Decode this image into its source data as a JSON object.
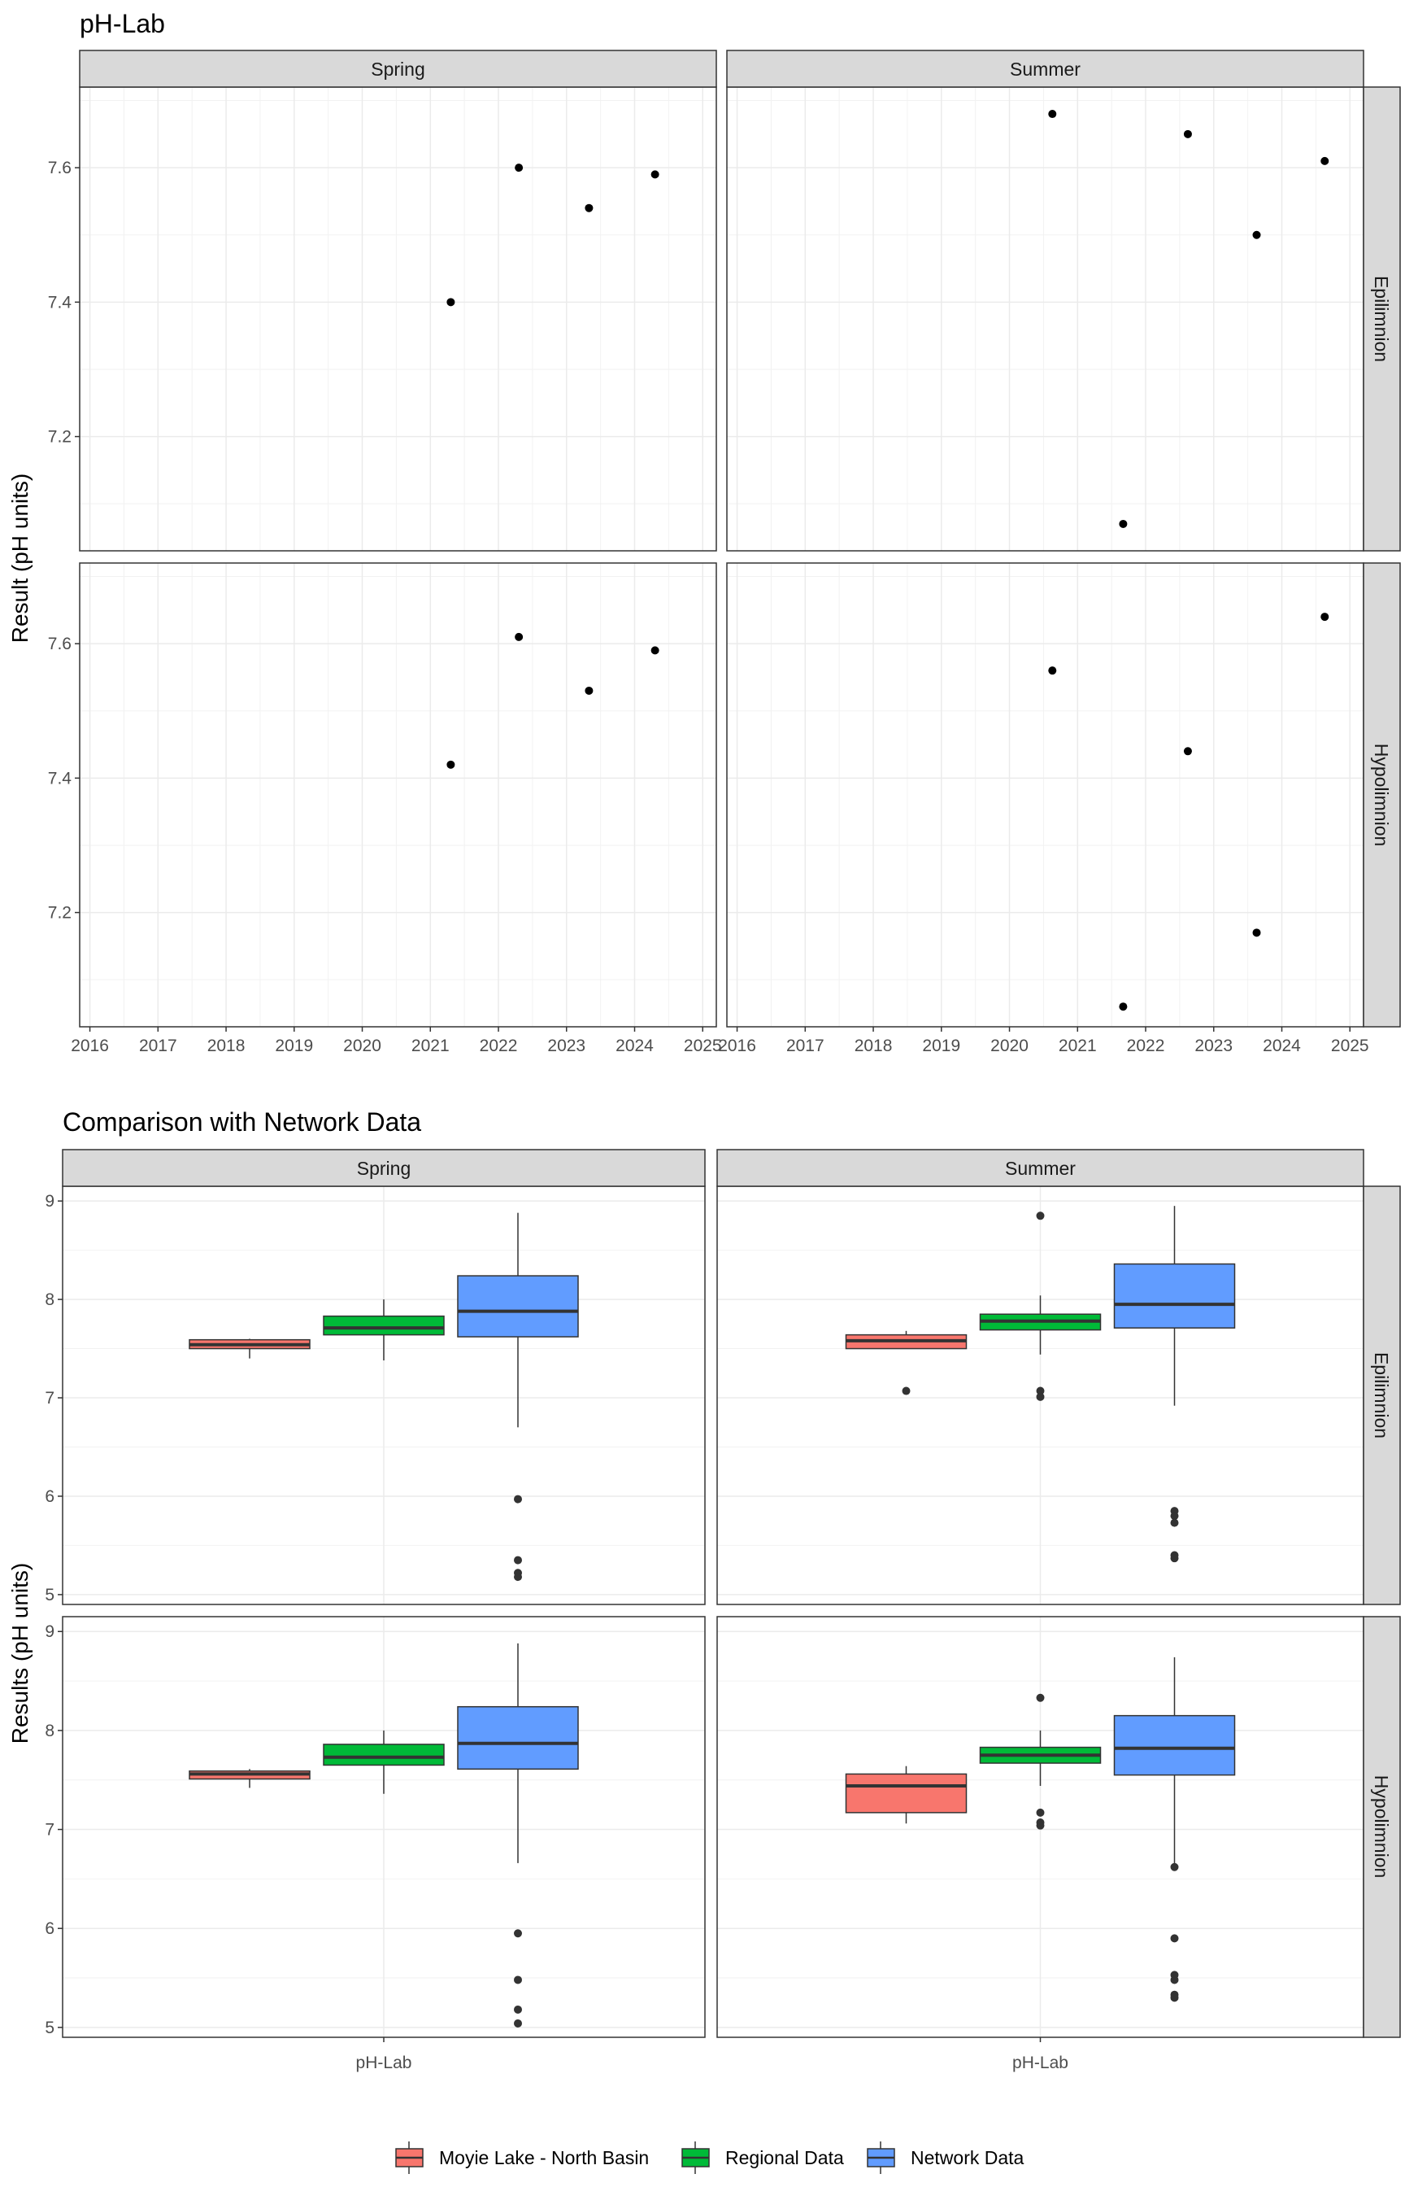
{
  "chart_data": [
    {
      "type": "scatter",
      "title": "pH-Lab",
      "ylabel": "Result (pH units)",
      "xlabel": "",
      "x_ticks": [
        "2016",
        "2017",
        "2018",
        "2019",
        "2020",
        "2021",
        "2022",
        "2023",
        "2024",
        "2025"
      ],
      "xlim": [
        2015.85,
        2025.2
      ],
      "ylim": [
        7.03,
        7.72
      ],
      "y_ticks": [
        "7.2",
        "7.4",
        "7.6"
      ],
      "grid": true,
      "facet_columns": [
        "Spring",
        "Summer"
      ],
      "facet_rows": [
        "Epilimnion",
        "Hypolimnion"
      ],
      "panels": [
        {
          "row": "Epilimnion",
          "column": "Spring",
          "points": [
            {
              "x": 2021.3,
              "y": 7.4
            },
            {
              "x": 2022.3,
              "y": 7.6
            },
            {
              "x": 2023.33,
              "y": 7.54
            },
            {
              "x": 2024.3,
              "y": 7.59
            }
          ]
        },
        {
          "row": "Epilimnion",
          "column": "Summer",
          "points": [
            {
              "x": 2020.63,
              "y": 7.68
            },
            {
              "x": 2021.67,
              "y": 7.07
            },
            {
              "x": 2022.62,
              "y": 7.65
            },
            {
              "x": 2023.63,
              "y": 7.5
            },
            {
              "x": 2024.63,
              "y": 7.61
            }
          ]
        },
        {
          "row": "Hypolimnion",
          "column": "Spring",
          "points": [
            {
              "x": 2021.3,
              "y": 7.42
            },
            {
              "x": 2022.3,
              "y": 7.61
            },
            {
              "x": 2023.33,
              "y": 7.53
            },
            {
              "x": 2024.3,
              "y": 7.59
            }
          ]
        },
        {
          "row": "Hypolimnion",
          "column": "Summer",
          "points": [
            {
              "x": 2020.63,
              "y": 7.56
            },
            {
              "x": 2021.67,
              "y": 7.06
            },
            {
              "x": 2022.62,
              "y": 7.44
            },
            {
              "x": 2023.63,
              "y": 7.17
            },
            {
              "x": 2024.63,
              "y": 7.64
            }
          ]
        }
      ]
    },
    {
      "type": "box",
      "title": "Comparison with Network Data",
      "ylabel": "Results (pH units)",
      "x_category": "pH-Lab",
      "ylim": [
        4.9,
        9.15
      ],
      "y_ticks": [
        "5",
        "6",
        "7",
        "8",
        "9"
      ],
      "grid": true,
      "legend_position": "bottom",
      "facet_columns": [
        "Spring",
        "Summer"
      ],
      "facet_rows": [
        "Epilimnion",
        "Hypolimnion"
      ],
      "series": [
        {
          "name": "Moyie Lake - North Basin",
          "color": "#F8766D"
        },
        {
          "name": "Regional Data",
          "color": "#00BA38"
        },
        {
          "name": "Network Data",
          "color": "#619CFF"
        }
      ],
      "panels": [
        {
          "row": "Epilimnion",
          "column": "Spring",
          "boxes": [
            {
              "series": "Moyie Lake - North Basin",
              "min": 7.4,
              "q1": 7.5,
              "median": 7.54,
              "q3": 7.59,
              "max": 7.6,
              "outliers": []
            },
            {
              "series": "Regional Data",
              "min": 7.38,
              "q1": 7.64,
              "median": 7.71,
              "q3": 7.83,
              "max": 8.0,
              "outliers": []
            },
            {
              "series": "Network Data",
              "min": 6.7,
              "q1": 7.62,
              "median": 7.88,
              "q3": 8.24,
              "max": 8.88,
              "outliers": [
                5.97,
                5.35,
                5.22,
                5.18
              ]
            }
          ]
        },
        {
          "row": "Epilimnion",
          "column": "Summer",
          "boxes": [
            {
              "series": "Moyie Lake - North Basin",
              "min": 7.5,
              "q1": 7.5,
              "median": 7.58,
              "q3": 7.64,
              "max": 7.68,
              "outliers": [
                7.07
              ]
            },
            {
              "series": "Regional Data",
              "min": 7.44,
              "q1": 7.69,
              "median": 7.78,
              "q3": 7.85,
              "max": 8.04,
              "outliers": [
                8.85,
                7.07,
                7.01
              ]
            },
            {
              "series": "Network Data",
              "min": 6.92,
              "q1": 7.71,
              "median": 7.95,
              "q3": 8.36,
              "max": 8.95,
              "outliers": [
                5.85,
                5.8,
                5.73,
                5.4,
                5.37
              ]
            }
          ]
        },
        {
          "row": "Hypolimnion",
          "column": "Spring",
          "boxes": [
            {
              "series": "Moyie Lake - North Basin",
              "min": 7.42,
              "q1": 7.51,
              "median": 7.56,
              "q3": 7.59,
              "max": 7.61,
              "outliers": []
            },
            {
              "series": "Regional Data",
              "min": 7.36,
              "q1": 7.65,
              "median": 7.73,
              "q3": 7.86,
              "max": 8.0,
              "outliers": []
            },
            {
              "series": "Network Data",
              "min": 6.66,
              "q1": 7.61,
              "median": 7.87,
              "q3": 8.24,
              "max": 8.88,
              "outliers": [
                5.95,
                5.48,
                5.18,
                5.04
              ]
            }
          ]
        },
        {
          "row": "Hypolimnion",
          "column": "Summer",
          "boxes": [
            {
              "series": "Moyie Lake - North Basin",
              "min": 7.06,
              "q1": 7.17,
              "median": 7.44,
              "q3": 7.56,
              "max": 7.64,
              "outliers": []
            },
            {
              "series": "Regional Data",
              "min": 7.44,
              "q1": 7.67,
              "median": 7.75,
              "q3": 7.83,
              "max": 8.0,
              "outliers": [
                8.33,
                7.17,
                7.07,
                7.04
              ]
            },
            {
              "series": "Network Data",
              "min": 6.62,
              "q1": 7.55,
              "median": 7.82,
              "q3": 8.15,
              "max": 8.74,
              "outliers": [
                6.62,
                5.9,
                5.53,
                5.48,
                5.33,
                5.3
              ]
            }
          ]
        }
      ]
    }
  ]
}
